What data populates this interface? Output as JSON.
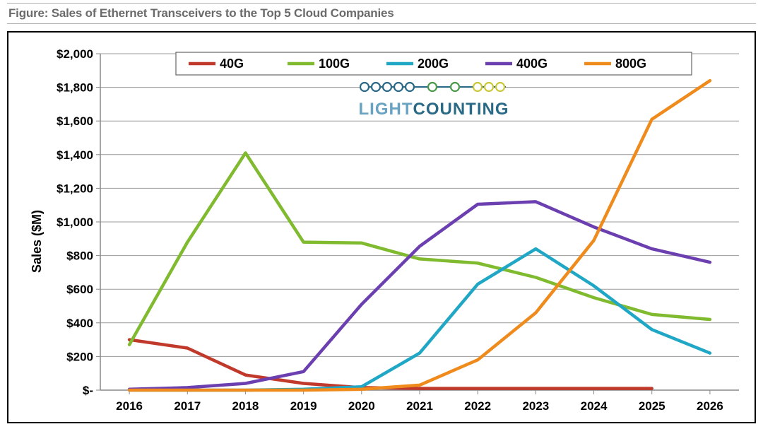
{
  "title": "Figure: Sales of Ethernet Transceivers to the Top 5 Cloud Companies",
  "ylabel": "Sales ($M)",
  "logo": {
    "part1": "LIGHT",
    "part2": "COUNTING"
  },
  "chart": {
    "type": "line",
    "years": [
      2016,
      2017,
      2018,
      2019,
      2020,
      2021,
      2022,
      2023,
      2024,
      2025,
      2026
    ],
    "x_tick_labels": [
      "2016",
      "2017",
      "2018",
      "2019",
      "2020",
      "2021",
      "2022",
      "2023",
      "2024",
      "2025",
      "2026"
    ],
    "ylim": [
      0,
      2000
    ],
    "ytick_step": 200,
    "y_tick_labels": [
      "$-",
      "$200",
      "$400",
      "$600",
      "$800",
      "$1,000",
      "$1,200",
      "$1,400",
      "$1,600",
      "$1,800",
      "$2,000"
    ],
    "background_color": "#ffffff",
    "grid_color": "#9a9a9a",
    "axis_color": "#888888",
    "tick_font_size": 17,
    "line_width": 4.5,
    "marker": "none",
    "series": [
      {
        "name": "40G",
        "color": "#c0392b",
        "values": [
          300,
          250,
          90,
          40,
          15,
          10,
          10,
          10,
          10,
          10,
          null
        ]
      },
      {
        "name": "100G",
        "color": "#7fba2f",
        "values": [
          270,
          880,
          1410,
          880,
          875,
          780,
          755,
          670,
          550,
          450,
          420
        ]
      },
      {
        "name": "200G",
        "color": "#1fa7c5",
        "values": [
          0,
          0,
          0,
          5,
          20,
          220,
          630,
          840,
          620,
          360,
          220
        ]
      },
      {
        "name": "400G",
        "color": "#6c3fb0",
        "values": [
          5,
          15,
          40,
          110,
          510,
          855,
          1105,
          1120,
          970,
          840,
          760
        ]
      },
      {
        "name": "800G",
        "color": "#ef8b1c",
        "values": [
          0,
          0,
          0,
          0,
          5,
          30,
          180,
          460,
          890,
          1610,
          1840
        ]
      }
    ],
    "legend": {
      "position": "top-center",
      "border_color": "#666666",
      "bg": "#ffffff",
      "font_size": 18,
      "font_weight": "bold"
    },
    "logo_circles_colors": [
      "#2a6a86",
      "#2a6a86",
      "#2a6a86",
      "#2a6a86",
      "#2a6a86",
      "#4a9a4a",
      "#4a9a4a",
      "#c9c93a",
      "#c9c93a",
      "#c9c93a"
    ]
  }
}
